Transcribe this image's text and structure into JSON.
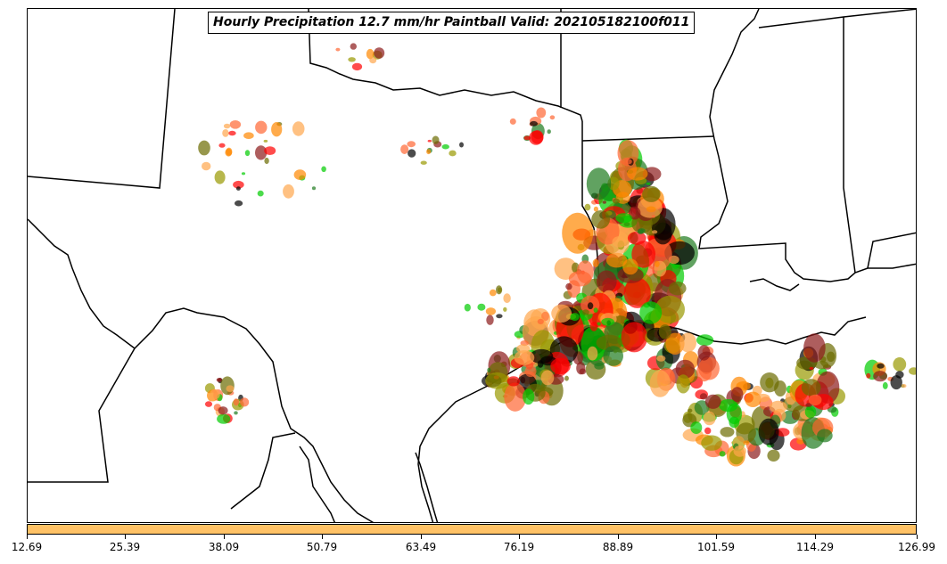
{
  "title": "Hourly Precipitation 12.7 mm/hr Paintball Valid: 202105182100f011",
  "colorbar": {
    "color": "#ffc266",
    "ticks": [
      "12.69",
      "25.39",
      "38.09",
      "50.79",
      "63.49",
      "76.19",
      "88.89",
      "101.59",
      "114.29",
      "126.99"
    ]
  },
  "member_colors": [
    "#ff0000",
    "#00cc00",
    "#ff8800",
    "#000000",
    "#8b1a1a",
    "#6b6b00",
    "#1e7a1e",
    "#ff6633",
    "#999900",
    "#ffa64d"
  ]
}
